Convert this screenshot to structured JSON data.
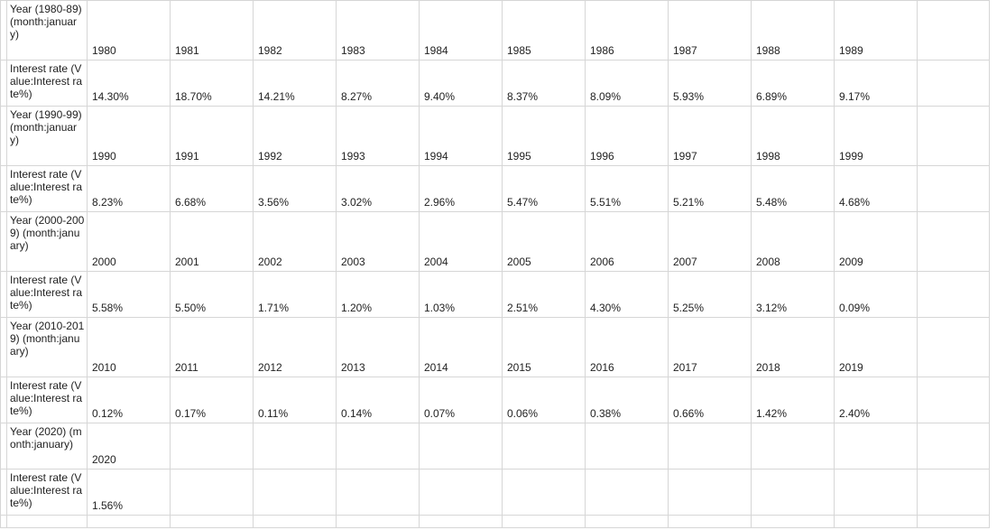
{
  "rows": [
    {
      "label": "Year (1980-89) (month:january)",
      "cells": [
        "1980",
        "1981",
        "1982",
        "1983",
        "1984",
        "1985",
        "1986",
        "1987",
        "1988",
        "1989"
      ]
    },
    {
      "label": "Interest rate (Value:Interest rate%)",
      "cells": [
        "14.30%",
        "18.70%",
        "14.21%",
        "8.27%",
        "9.40%",
        "8.37%",
        "8.09%",
        "5.93%",
        "6.89%",
        "9.17%"
      ]
    },
    {
      "label": "Year (1990-99) (month:january)",
      "cells": [
        "1990",
        "1991",
        "1992",
        "1993",
        "1994",
        "1995",
        "1996",
        "1997",
        "1998",
        "1999"
      ]
    },
    {
      "label": "Interest rate (Value:Interest rate%)",
      "cells": [
        "8.23%",
        "6.68%",
        "3.56%",
        "3.02%",
        "2.96%",
        "5.47%",
        "5.51%",
        "5.21%",
        "5.48%",
        "4.68%"
      ]
    },
    {
      "label": "Year (2000-2009) (month:january)",
      "cells": [
        "2000",
        "2001",
        "2002",
        "2003",
        "2004",
        "2005",
        "2006",
        "2007",
        "2008",
        "2009"
      ]
    },
    {
      "label": "Interest rate (Value:Interest rate%)",
      "cells": [
        "5.58%",
        "5.50%",
        "1.71%",
        "1.20%",
        "1.03%",
        "2.51%",
        "4.30%",
        "5.25%",
        "3.12%",
        "0.09%"
      ]
    },
    {
      "label": "Year (2010-2019) (month:january)",
      "cells": [
        "2010",
        "2011",
        "2012",
        "2013",
        "2014",
        "2015",
        "2016",
        "2017",
        "2018",
        "2019"
      ]
    },
    {
      "label": "Interest rate (Value:Interest rate%)",
      "cells": [
        "0.12%",
        "0.17%",
        "0.11%",
        "0.14%",
        "0.07%",
        "0.06%",
        "0.38%",
        "0.66%",
        "1.42%",
        "2.40%"
      ]
    },
    {
      "label": "Year (2020) (month:january)",
      "cells": [
        "2020",
        "",
        "",
        "",
        "",
        "",
        "",
        "",
        "",
        ""
      ]
    },
    {
      "label": "Interest rate (Value:Interest rate%)",
      "cells": [
        "1.56%",
        "",
        "",
        "",
        "",
        "",
        "",
        "",
        "",
        ""
      ]
    }
  ]
}
